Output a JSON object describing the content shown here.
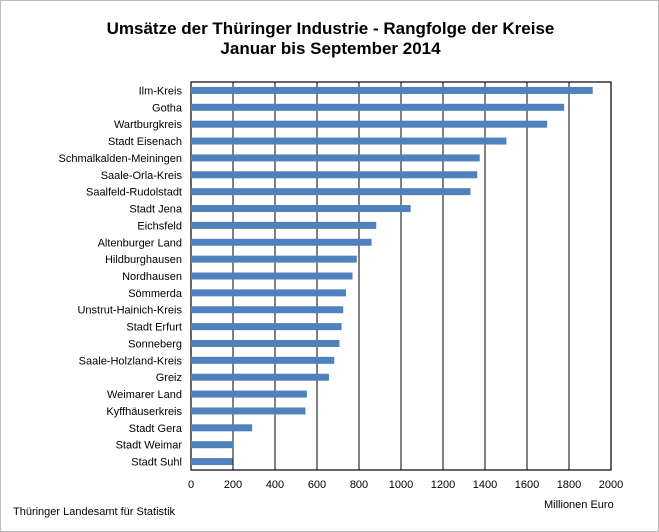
{
  "chart_data": {
    "type": "bar",
    "orientation": "horizontal",
    "title": "Umsätze der Thüringer Industrie - Rangfolge der Kreise",
    "subtitle": "Januar bis September 2014",
    "xlabel": "Millionen Euro",
    "source": "Thüringer Landesamt für Statistik",
    "categories": [
      "Ilm-Kreis",
      "Gotha",
      "Wartburgkreis",
      "Stadt Eisenach",
      "Schmalkalden-Meiningen",
      "Saale-Orla-Kreis",
      "Saalfeld-Rudolstadt",
      "Stadt Jena",
      "Eichsfeld",
      "Altenburger Land",
      "Hildburghausen",
      "Nordhausen",
      "Sömmerda",
      "Unstrut-Hainich-Kreis",
      "Stadt Erfurt",
      "Sonneberg",
      "Saale-Holzland-Kreis",
      "Greiz",
      "Weimarer Land",
      "Kyffhäuserkreis",
      "Stadt Gera",
      "Stadt Weimar",
      "Stadt Suhl"
    ],
    "values": [
      1913,
      1777,
      1696,
      1502,
      1375,
      1363,
      1331,
      1046,
      882,
      860,
      790,
      769,
      738,
      725,
      717,
      707,
      682,
      657,
      552,
      545,
      291,
      204,
      197
    ],
    "xlim": [
      0,
      2000
    ],
    "xticks": [
      0,
      200,
      400,
      600,
      800,
      1000,
      1200,
      1400,
      1600,
      1800,
      2000
    ],
    "grid": "vertical",
    "bar_color": "#4f81bd"
  }
}
